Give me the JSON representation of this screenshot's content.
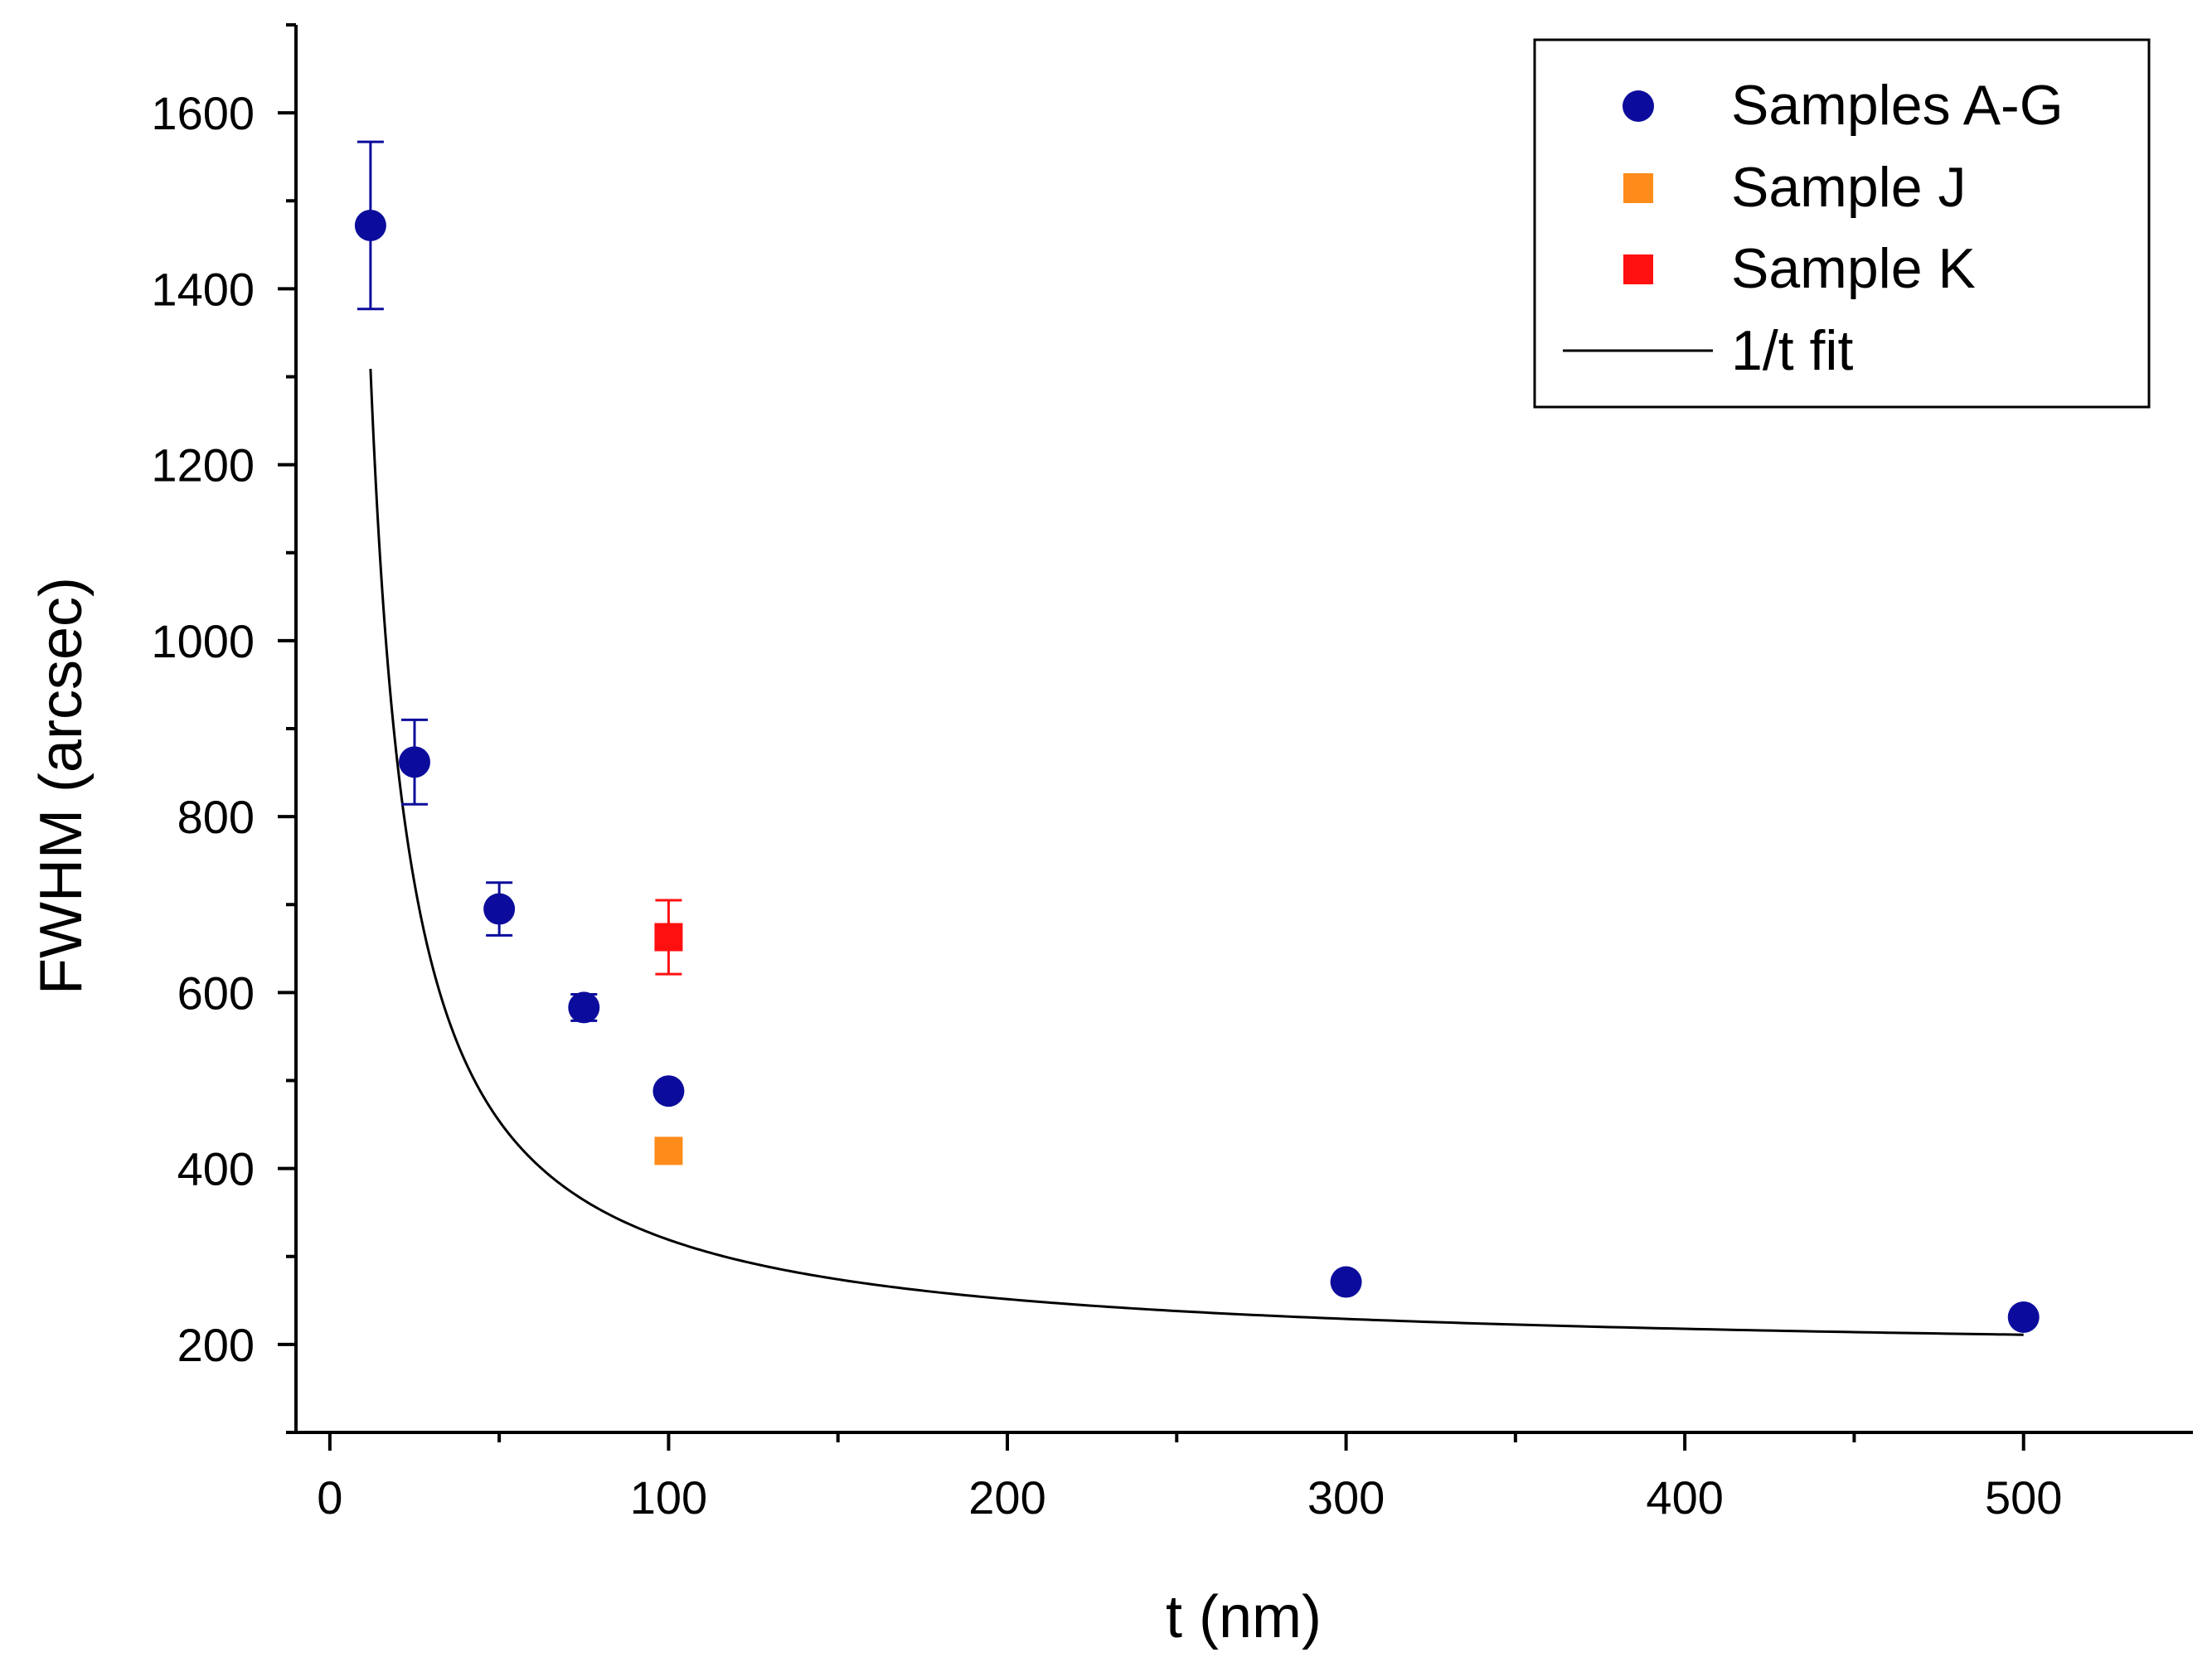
{
  "chart_data": {
    "type": "scatter",
    "xlabel": "t (nm)",
    "ylabel": "FWHM (arcsec)",
    "xlim": [
      -10,
      550
    ],
    "ylim": [
      100,
      1700
    ],
    "xticks": [
      0,
      100,
      200,
      300,
      400,
      500
    ],
    "yticks": [
      200,
      400,
      600,
      800,
      1000,
      1200,
      1400,
      1600
    ],
    "grid": false,
    "legend_position": "top-right",
    "series": [
      {
        "name": "Samples A-G",
        "marker": "circle",
        "color": "#0c0c9c",
        "x": [
          12,
          25,
          50,
          75,
          100,
          300,
          500
        ],
        "y": [
          1472,
          862,
          695,
          583,
          488,
          271,
          231
        ],
        "err": [
          95,
          48,
          30,
          15,
          0,
          0,
          0
        ]
      },
      {
        "name": "Sample J",
        "marker": "square",
        "color": "#ff8c1a",
        "x": [
          100
        ],
        "y": [
          420
        ],
        "err": [
          0
        ]
      },
      {
        "name": "Sample K",
        "marker": "square",
        "color": "#ff1010",
        "x": [
          100
        ],
        "y": [
          663
        ],
        "err": [
          42
        ]
      },
      {
        "name": "1/t fit",
        "type": "line",
        "color": "#000000",
        "function": "A + B/t",
        "A": 184,
        "B": 13500,
        "t_range": [
          12,
          500
        ]
      }
    ]
  }
}
